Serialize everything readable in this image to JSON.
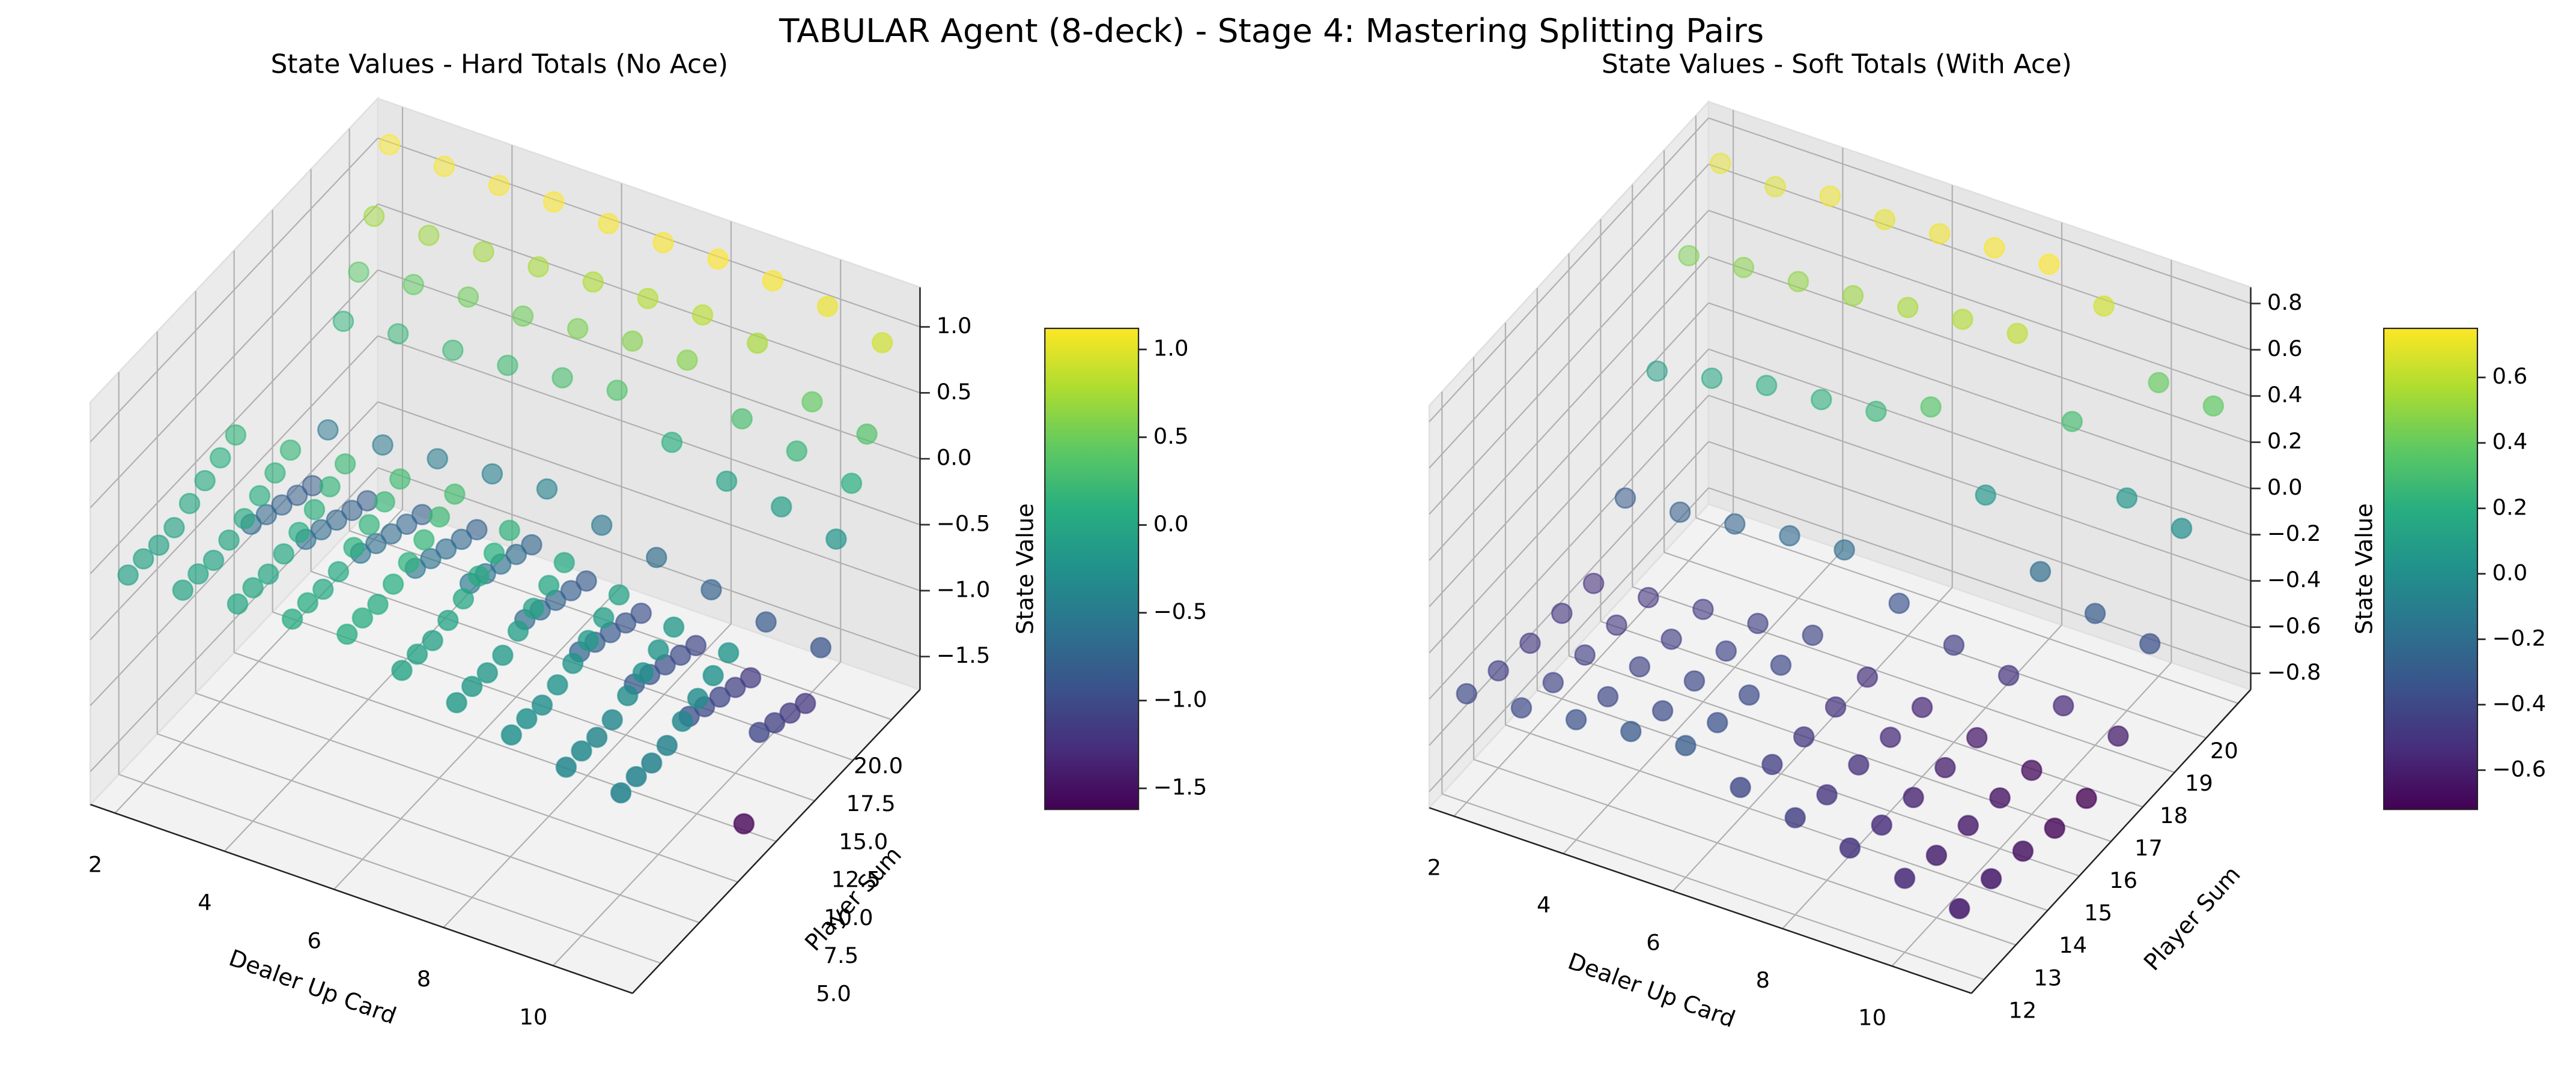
{
  "title": "TABULAR Agent (8-deck) - Stage 4: Mastering Splitting Pairs",
  "chart_data": [
    {
      "type": "scatter3d",
      "title": "State Values - Hard Totals (No Ace)",
      "xlabel": "Dealer Up Card",
      "ylabel": "Player Sum",
      "colorbar_label": "State Value",
      "colormap": "viridis",
      "x": [
        2,
        3,
        4,
        5,
        6,
        7,
        8,
        9,
        10,
        11
      ],
      "y": [
        4,
        5,
        6,
        7,
        8,
        9,
        10,
        11,
        12,
        13,
        14,
        15,
        16,
        17,
        18,
        19,
        20,
        21
      ],
      "values": [
        [
          -0.05,
          -0.02,
          0.02,
          0.05,
          0.08,
          -0.05,
          -0.15,
          -0.25,
          -0.35,
          -0.4
        ],
        [
          -0.05,
          -0.02,
          0.02,
          0.05,
          0.08,
          -0.05,
          -0.15,
          -0.25,
          -0.35,
          -0.4
        ],
        [
          -0.07,
          -0.04,
          0.0,
          0.03,
          0.06,
          -0.07,
          -0.17,
          -0.27,
          -0.37,
          -0.42
        ],
        [
          -0.06,
          -0.01,
          0.03,
          0.04,
          0.09,
          -0.04,
          -0.16,
          -0.24,
          -0.36,
          -0.41
        ],
        [
          0.0,
          0.03,
          0.07,
          0.1,
          0.13,
          0.0,
          -0.1,
          -0.2,
          -0.3,
          -0.35
        ],
        [
          0.05,
          0.08,
          0.12,
          0.15,
          0.18,
          0.05,
          -0.05,
          -0.15,
          -0.25,
          -0.3
        ],
        [
          0.1,
          0.13,
          0.17,
          0.2,
          0.23,
          0.1,
          0.0,
          -0.1,
          -0.2,
          -0.25
        ],
        [
          0.15,
          0.18,
          0.22,
          0.25,
          0.28,
          0.15,
          0.05,
          -0.05,
          -0.15,
          -0.2
        ],
        [
          -0.65,
          -0.62,
          -0.58,
          -0.55,
          -0.52,
          -0.65,
          -0.75,
          -0.85,
          -0.95,
          -1.62
        ],
        [
          -0.7,
          -0.67,
          -0.63,
          -0.6,
          -0.57,
          -0.7,
          -0.8,
          -0.9,
          -1.0,
          -1.05
        ],
        [
          -0.75,
          -0.72,
          -0.68,
          -0.65,
          -0.62,
          -0.75,
          -0.85,
          -0.95,
          -1.05,
          -1.1
        ],
        [
          -0.8,
          -0.77,
          -0.73,
          -0.7,
          -0.67,
          -0.8,
          -0.9,
          -1.0,
          -1.1,
          -1.15
        ],
        [
          -0.85,
          -0.82,
          -0.78,
          -0.75,
          -0.72,
          -0.85,
          -0.95,
          -1.05,
          -1.15,
          -1.2
        ],
        [
          -0.55,
          -0.52,
          -0.48,
          -0.45,
          -0.42,
          -0.55,
          -0.65,
          -0.75,
          -0.85,
          -0.9
        ],
        [
          0.15,
          0.2,
          0.22,
          0.25,
          0.3,
          0.35,
          0.1,
          -0.05,
          -0.1,
          -0.2
        ],
        [
          0.4,
          0.45,
          0.5,
          0.5,
          0.55,
          0.6,
          0.6,
          0.3,
          0.2,
          0.1
        ],
        [
          0.7,
          0.7,
          0.72,
          0.75,
          0.78,
          0.8,
          0.82,
          0.75,
          0.45,
          0.35
        ],
        [
          1.12,
          1.1,
          1.1,
          1.12,
          1.1,
          1.1,
          1.12,
          1.1,
          1.05,
          0.92
        ]
      ],
      "xlim": [
        1.55,
        11.45
      ],
      "ylim": [
        3.15,
        21.85
      ],
      "zlim": [
        -1.75,
        1.3
      ],
      "xticks": [
        2,
        4,
        6,
        8,
        10
      ],
      "yticks": [
        {
          "value": 5,
          "label": "5.0"
        },
        7.5,
        {
          "value": 10,
          "label": "10.0"
        },
        12.5,
        {
          "value": 15,
          "label": "15.0"
        },
        17.5,
        {
          "value": 20,
          "label": "20.0"
        }
      ],
      "zticks": [
        {
          "value": -1.5,
          "label": "−1.5"
        },
        {
          "value": -1.0,
          "label": "−1.0"
        },
        {
          "value": -0.5,
          "label": "−0.5"
        },
        {
          "value": 0,
          "label": "0.0"
        },
        0.5,
        {
          "value": 1,
          "label": "1.0"
        }
      ],
      "colorbar_ticks": [
        {
          "value": -1.5,
          "label": "−1.5"
        },
        {
          "value": -1.0,
          "label": "−1.0"
        },
        {
          "value": -0.5,
          "label": "−0.5"
        },
        {
          "value": 0,
          "label": "0.0"
        },
        0.5,
        {
          "value": 1,
          "label": "1.0"
        }
      ],
      "grid": true
    },
    {
      "type": "scatter3d",
      "title": "State Values - Soft Totals (With Ace)",
      "xlabel": "Dealer Up Card",
      "ylabel": "Player Sum",
      "colorbar_label": "State Value",
      "colormap": "viridis",
      "x": [
        2,
        3,
        4,
        5,
        6,
        7,
        8,
        9,
        10,
        11
      ],
      "y": [
        12,
        13,
        14,
        15,
        16,
        17,
        18,
        19,
        20
      ],
      "values": [
        [
          -0.4,
          -0.38,
          -0.35,
          -0.32,
          -0.3,
          -0.4,
          -0.45,
          -0.5,
          -0.55,
          -0.6
        ],
        [
          -0.45,
          -0.42,
          -0.4,
          -0.38,
          -0.35,
          -0.45,
          -0.5,
          -0.55,
          -0.6,
          -0.62
        ],
        [
          -0.48,
          -0.45,
          -0.42,
          -0.4,
          -0.38,
          -0.48,
          -0.52,
          -0.58,
          -0.62,
          -0.65
        ],
        [
          -0.5,
          -0.47,
          -0.45,
          -0.42,
          -0.4,
          -0.5,
          -0.55,
          -0.6,
          -0.65,
          -0.7
        ],
        [
          -0.52,
          -0.5,
          -0.47,
          -0.45,
          -0.42,
          -0.52,
          -0.57,
          -0.62,
          -0.68,
          -0.72
        ],
        [
          -0.3,
          -0.28,
          -0.25,
          -0.22,
          -0.2,
          -0.35,
          -0.45,
          -0.5,
          -0.55,
          -0.6
        ],
        [
          0.1,
          0.15,
          0.2,
          0.22,
          0.25,
          0.35,
          0.05,
          -0.2,
          -0.3,
          -0.35
        ],
        [
          0.45,
          0.48,
          0.5,
          0.52,
          0.55,
          0.58,
          0.6,
          0.3,
          0.05,
          0.0
        ],
        [
          0.7,
          0.68,
          0.72,
          0.7,
          0.72,
          0.74,
          0.75,
          0.65,
          0.4,
          0.38
        ]
      ],
      "xlim": [
        1.55,
        11.45
      ],
      "ylim": [
        11.6,
        20.4
      ],
      "zlim": [
        -0.87,
        0.87
      ],
      "xticks": [
        2,
        4,
        6,
        8,
        10
      ],
      "yticks": [
        12,
        13,
        14,
        15,
        16,
        17,
        18,
        19,
        20
      ],
      "zticks": [
        {
          "value": -0.8,
          "label": "−0.8"
        },
        {
          "value": -0.6,
          "label": "−0.6"
        },
        {
          "value": -0.4,
          "label": "−0.4"
        },
        {
          "value": -0.2,
          "label": "−0.2"
        },
        {
          "value": 0,
          "label": "0.0"
        },
        0.2,
        0.4,
        0.6,
        0.8
      ],
      "colorbar_ticks": [
        {
          "value": -0.6,
          "label": "−0.6"
        },
        {
          "value": -0.4,
          "label": "−0.4"
        },
        {
          "value": -0.2,
          "label": "−0.2"
        },
        {
          "value": 0,
          "label": "0.0"
        },
        0.2,
        0.4,
        0.6
      ],
      "grid": true
    }
  ]
}
